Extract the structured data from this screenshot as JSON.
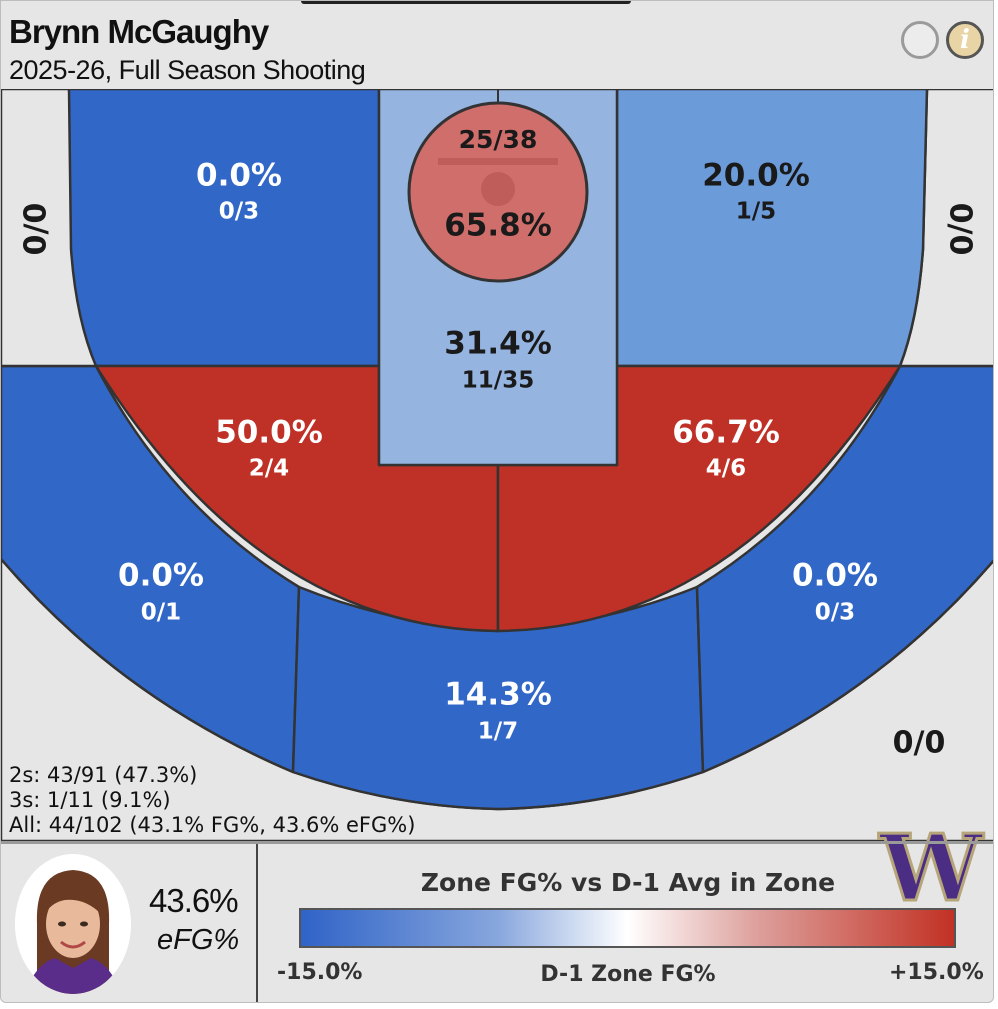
{
  "header": {
    "player_name": "Brynn McGaughy",
    "season": "2025-26, Full Season Shooting"
  },
  "chart_data": {
    "type": "shot_zone_chart",
    "zones": [
      {
        "zone": "left-corner-three",
        "pct": "0/0",
        "made": 0,
        "att": 0,
        "color": "#e6e6e6",
        "text": "dark"
      },
      {
        "zone": "left-wing-midrange",
        "pct": "0.0%",
        "frac": "0/3",
        "made": 0,
        "att": 3,
        "color": "#3168c8",
        "text": "light"
      },
      {
        "zone": "rim",
        "pct": "65.8%",
        "frac": "25/38",
        "made": 25,
        "att": 38,
        "color": "#d06e6c",
        "text": "dark"
      },
      {
        "zone": "paint",
        "pct": "31.4%",
        "frac": "11/35",
        "made": 11,
        "att": 35,
        "color": "#95b4e0",
        "text": "dark"
      },
      {
        "zone": "right-wing-midrange",
        "pct": "20.0%",
        "frac": "1/5",
        "made": 1,
        "att": 5,
        "color": "#6b9bd9",
        "text": "dark"
      },
      {
        "zone": "right-corner-three",
        "pct": "0/0",
        "made": 0,
        "att": 0,
        "color": "#e6e6e6",
        "text": "dark"
      },
      {
        "zone": "left-elbow-midrange",
        "pct": "50.0%",
        "frac": "2/4",
        "made": 2,
        "att": 4,
        "color": "#bf3126",
        "text": "light"
      },
      {
        "zone": "right-elbow-midrange",
        "pct": "66.7%",
        "frac": "4/6",
        "made": 4,
        "att": 6,
        "color": "#bf3126",
        "text": "light"
      },
      {
        "zone": "left-wing-three",
        "pct": "0.0%",
        "frac": "0/1",
        "made": 0,
        "att": 1,
        "color": "#3168c8",
        "text": "light"
      },
      {
        "zone": "top-of-key-three",
        "pct": "14.3%",
        "frac": "1/7",
        "made": 1,
        "att": 7,
        "color": "#3168c8",
        "text": "light"
      },
      {
        "zone": "right-wing-three",
        "pct": "0.0%",
        "frac": "0/3",
        "made": 0,
        "att": 3,
        "color": "#3168c8",
        "text": "light"
      },
      {
        "zone": "backcourt",
        "pct": "0/0",
        "made": 0,
        "att": 0,
        "color": "#e6e6e6",
        "text": "dark"
      }
    ],
    "summary": {
      "twos": "2s: 43/91 (47.3%)",
      "threes": "3s: 1/11 (9.1%)",
      "all": "All: 44/102 (43.1% FG%, 43.6% eFG%)"
    },
    "legend": {
      "title": "Zone FG% vs D-1 Avg in Zone",
      "min_label": "-15.0%",
      "mid_label": "D-1 Zone FG%",
      "max_label": "+15.0%",
      "range": [
        -15,
        15
      ],
      "colors": [
        "#2f63c7",
        "#ffffff",
        "#c23124"
      ]
    }
  },
  "player_card": {
    "efg_value": "43.6%",
    "efg_label": "eFG%"
  },
  "logo_text": "W"
}
